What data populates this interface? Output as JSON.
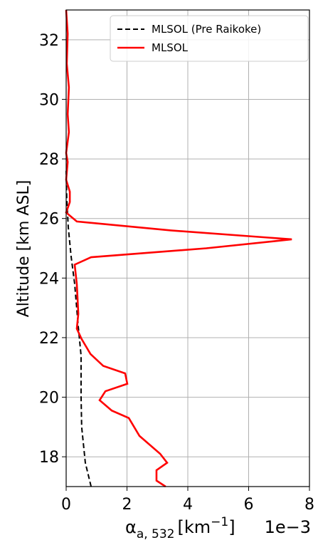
{
  "chart_data": {
    "type": "line",
    "xlabel": [
      "α",
      "a, 532",
      "[km",
      "−1",
      "]"
    ],
    "x_offset_label": "1e−3",
    "ylabel": "Altitude [km ASL]",
    "xlim": [
      0,
      8
    ],
    "xticks": [
      0,
      2,
      4,
      6,
      8
    ],
    "ylim": [
      17,
      33
    ],
    "yticks": [
      18,
      20,
      22,
      24,
      26,
      28,
      30,
      32
    ],
    "grid": true,
    "legend": "upper right",
    "series": [
      {
        "name": "MLSOL (Pre Raikoke)",
        "color": "#000000",
        "dashed": true,
        "values": [
          0.82,
          0.63,
          0.51,
          0.49,
          0.49,
          0.4,
          0.28,
          0.16,
          0.07,
          0.02,
          0.0
        ],
        "altitudes": [
          17.0,
          17.8,
          19.0,
          20.05,
          21.4,
          22.35,
          23.8,
          24.75,
          25.7,
          26.65,
          27.6
        ]
      },
      {
        "name": "MLSOL",
        "color": "#ff0000",
        "dashed": false,
        "values": [
          3.27,
          2.97,
          2.97,
          3.32,
          3.09,
          2.41,
          2.06,
          1.5,
          1.1,
          1.29,
          2.01,
          1.94,
          1.22,
          0.8,
          0.51,
          0.35,
          0.4,
          0.35,
          0.28,
          0.82,
          4.61,
          7.42,
          3.44,
          0.35,
          0.0,
          0.12,
          0.12,
          0.0,
          0.05,
          0.0,
          0.09,
          0.05,
          0.09,
          0.02,
          0.05,
          0.0
        ],
        "altitudes": [
          17.0,
          17.2,
          17.55,
          17.8,
          18.1,
          18.7,
          19.3,
          19.55,
          19.9,
          20.2,
          20.45,
          20.8,
          21.05,
          21.45,
          21.95,
          22.3,
          22.8,
          23.8,
          24.45,
          24.7,
          25.0,
          25.3,
          25.6,
          25.9,
          26.2,
          26.55,
          26.9,
          27.3,
          27.9,
          28.2,
          28.9,
          29.5,
          30.4,
          31.2,
          32.2,
          33.0
        ]
      }
    ]
  }
}
